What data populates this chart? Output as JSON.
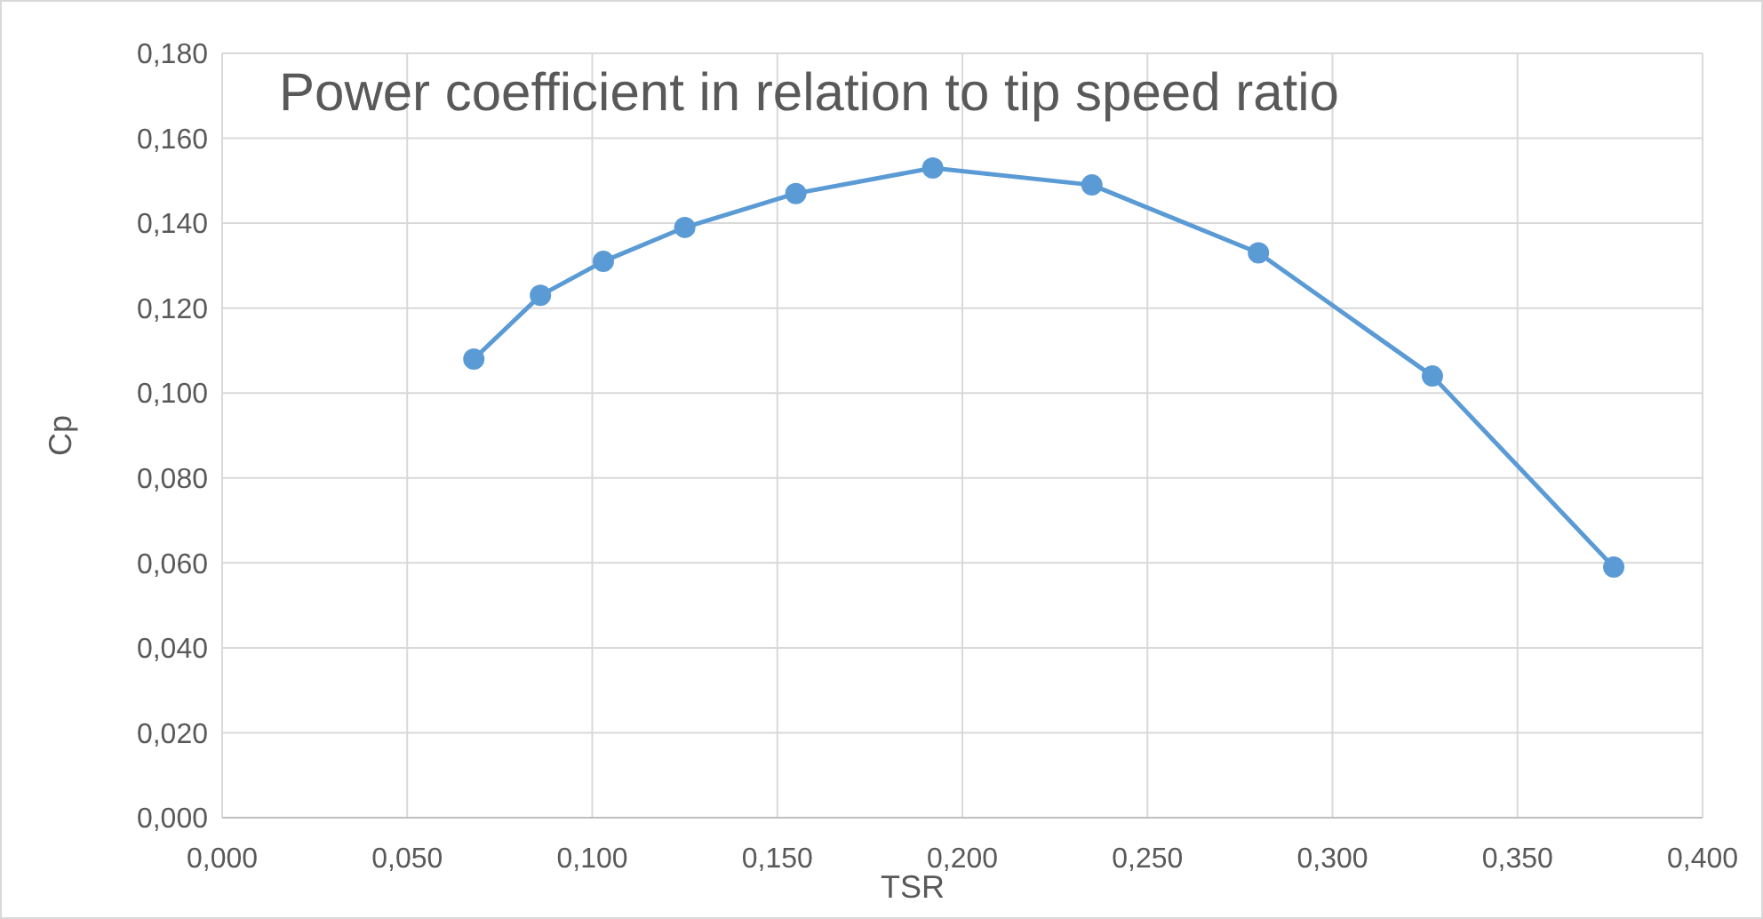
{
  "chart_data": {
    "type": "line",
    "title": "Power coefficient in relation to tip speed ratio",
    "xlabel": "TSR",
    "ylabel": "Cp",
    "x": [
      0.068,
      0.086,
      0.103,
      0.125,
      0.155,
      0.192,
      0.235,
      0.28,
      0.327,
      0.376
    ],
    "series": [
      {
        "color": "#5b9bd5",
        "values": [
          0.108,
          0.123,
          0.131,
          0.139,
          0.147,
          0.153,
          0.149,
          0.133,
          0.104,
          0.059
        ]
      }
    ],
    "xlim": [
      0,
      0.4
    ],
    "ylim": [
      0,
      0.18
    ],
    "xticks": [
      {
        "value": 0,
        "label": "0,000"
      },
      {
        "value": 0.05,
        "label": "0,050"
      },
      {
        "value": 0.1,
        "label": "0,100"
      },
      {
        "value": 0.15,
        "label": "0,150"
      },
      {
        "value": 0.2,
        "label": "0,200"
      },
      {
        "value": 0.25,
        "label": "0,250"
      },
      {
        "value": 0.3,
        "label": "0,300"
      },
      {
        "value": 0.35,
        "label": "0,350"
      },
      {
        "value": 0.4,
        "label": "0,400"
      }
    ],
    "yticks": [
      {
        "value": 0,
        "label": "0,000"
      },
      {
        "value": 0.02,
        "label": "0,020"
      },
      {
        "value": 0.04,
        "label": "0,040"
      },
      {
        "value": 0.06,
        "label": "0,060"
      },
      {
        "value": 0.08,
        "label": "0,080"
      },
      {
        "value": 0.1,
        "label": "0,100"
      },
      {
        "value": 0.12,
        "label": "0,120"
      },
      {
        "value": 0.14,
        "label": "0,140"
      },
      {
        "value": 0.16,
        "label": "0,160"
      },
      {
        "value": 0.18,
        "label": "0,180"
      }
    ],
    "grid": true,
    "marker": "circle",
    "line_style": "solid"
  }
}
